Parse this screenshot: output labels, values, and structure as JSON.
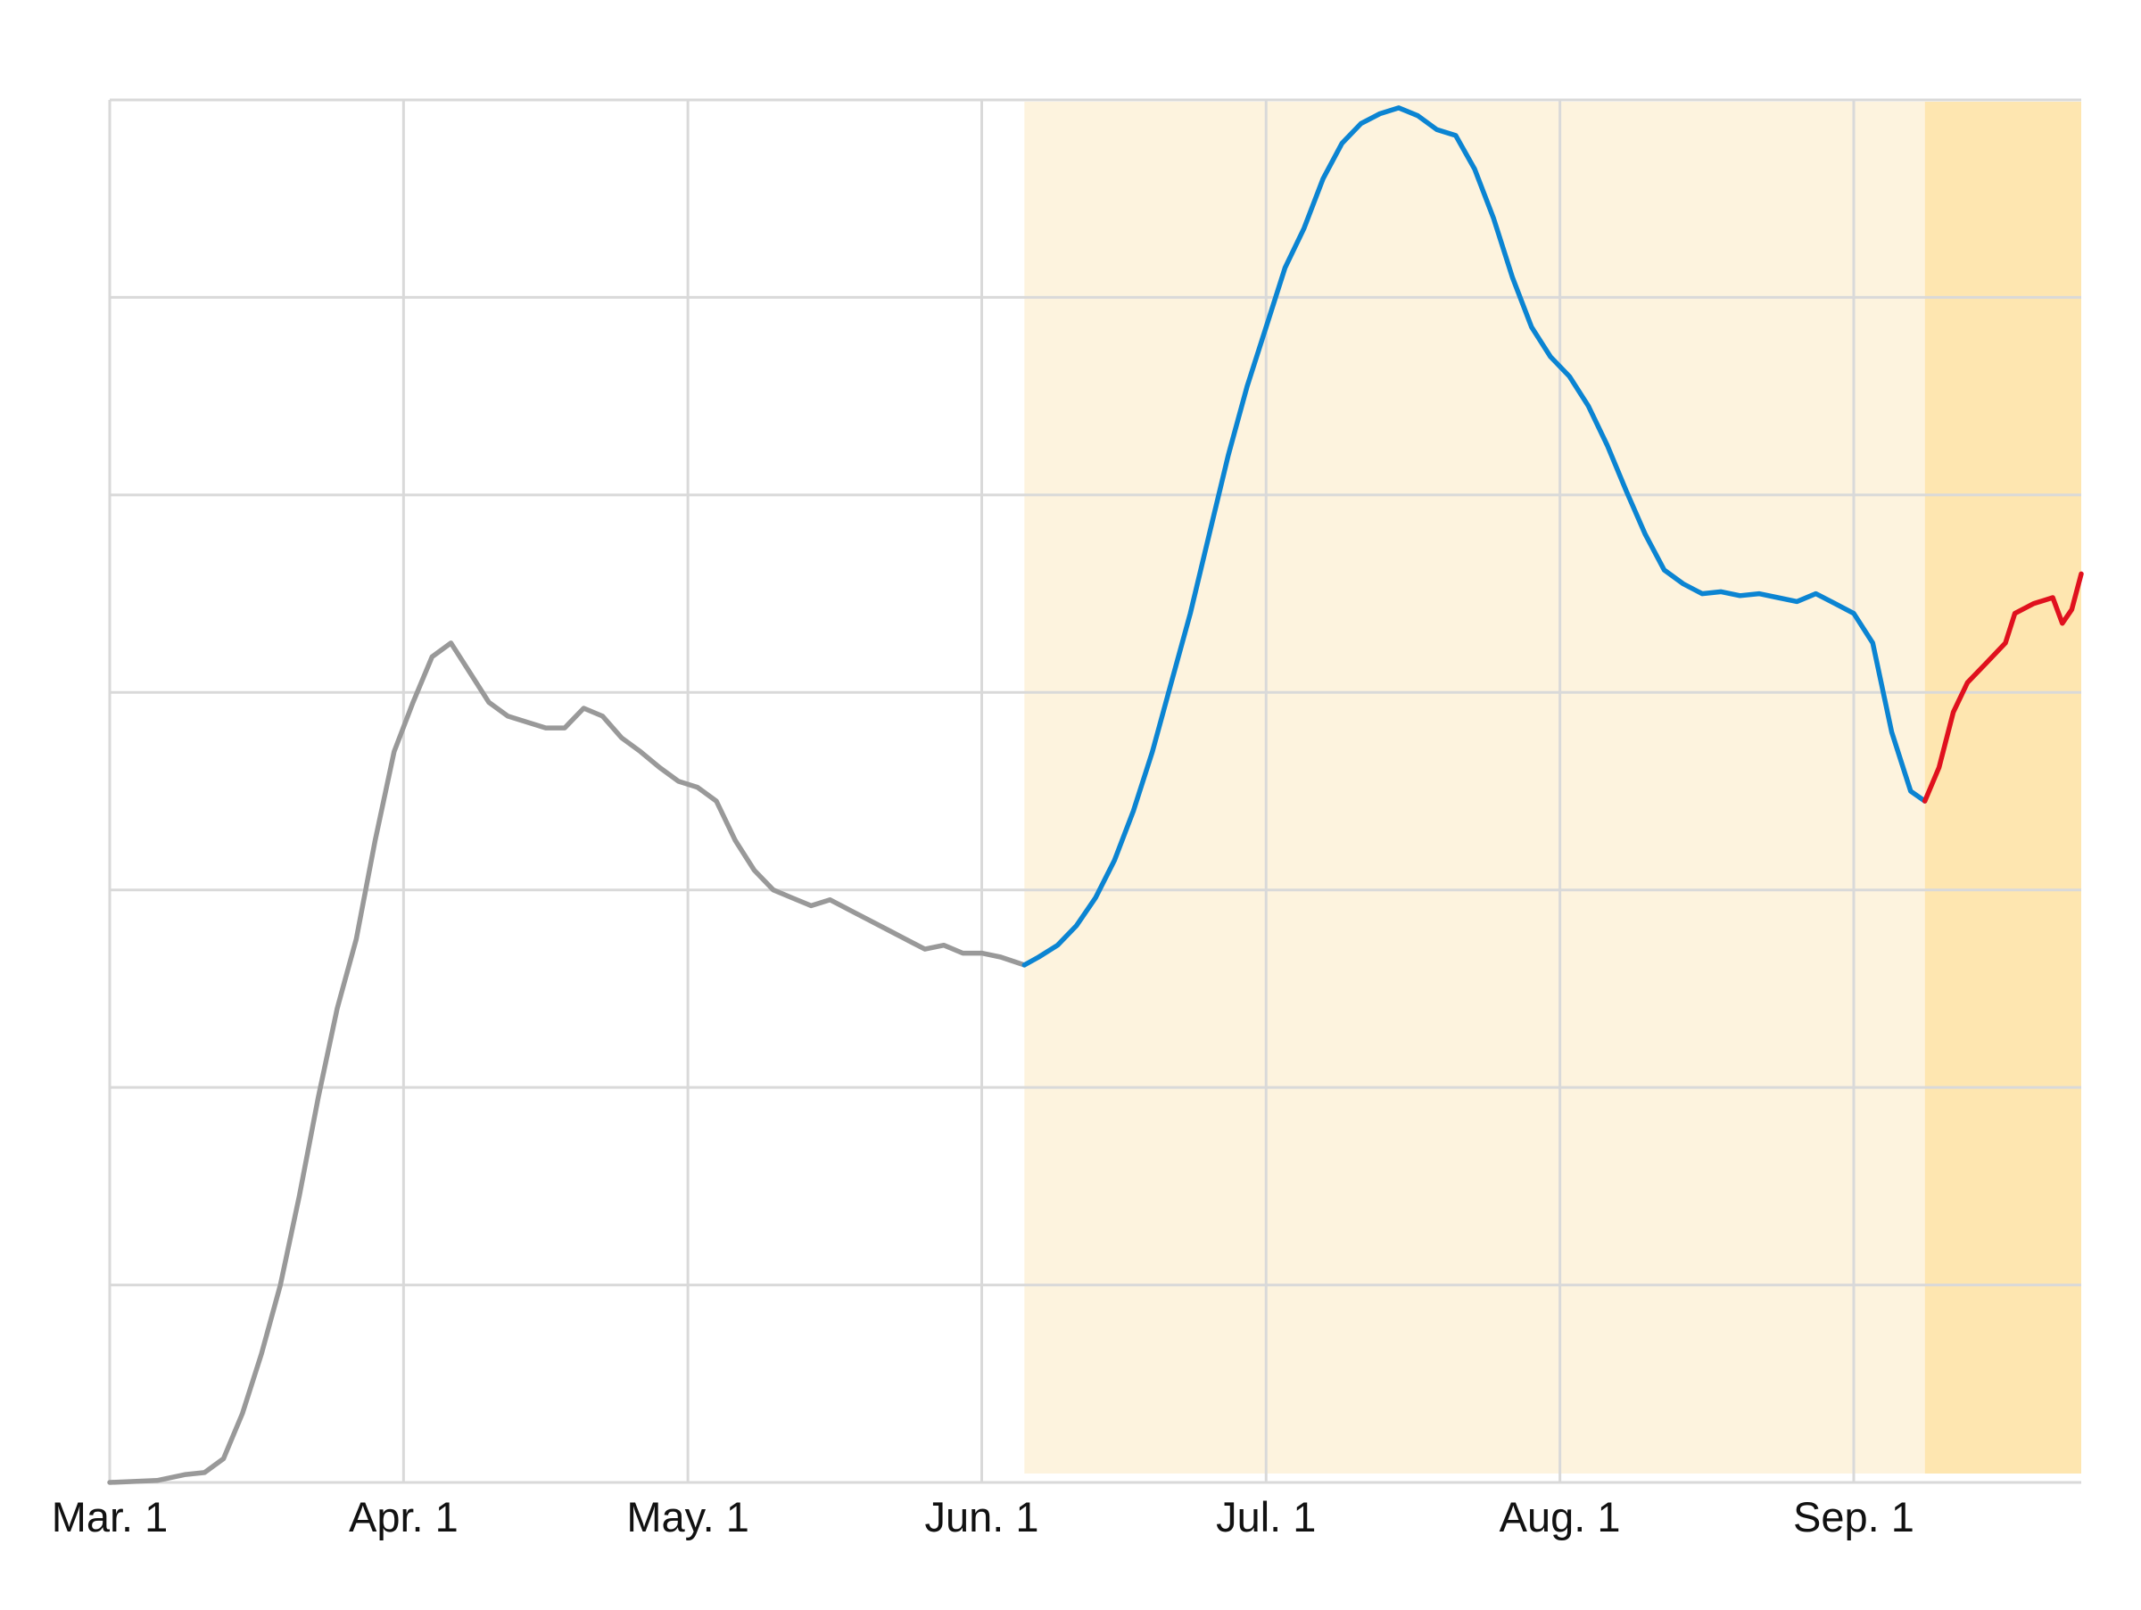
{
  "chart_data": {
    "type": "line",
    "title": "",
    "xlabel": "",
    "ylabel": "",
    "x_tick_labels": [
      {
        "label": "Mar. 1",
        "day": 0
      },
      {
        "label": "Apr. 1",
        "day": 31
      },
      {
        "label": "May. 1",
        "day": 61
      },
      {
        "label": "Jun. 1",
        "day": 92
      },
      {
        "label": "Jul. 1",
        "day": 122
      },
      {
        "label": "Aug. 1",
        "day": 153
      },
      {
        "label": "Sep. 1",
        "day": 184
      }
    ],
    "xlim": [
      0,
      208
    ],
    "ylim": [
      0,
      7
    ],
    "y_grid": [
      1,
      2,
      3,
      4,
      5,
      6,
      7
    ],
    "y_tick_labels": [],
    "grid": true,
    "shaded_regions": [
      {
        "from": 96.5,
        "to": 191.5,
        "color": "#fdf3de"
      },
      {
        "from": 191.5,
        "to": 208,
        "color": "#fee6b0"
      }
    ],
    "series": [
      {
        "color": "#999999",
        "points": [
          [
            0,
            0.0
          ],
          [
            5,
            0.01
          ],
          [
            8,
            0.04
          ],
          [
            10,
            0.05
          ],
          [
            12,
            0.12
          ],
          [
            14,
            0.35
          ],
          [
            16,
            0.65
          ],
          [
            18,
            1.0
          ],
          [
            20,
            1.45
          ],
          [
            22,
            1.95
          ],
          [
            24,
            2.4
          ],
          [
            26,
            2.75
          ],
          [
            28,
            3.25
          ],
          [
            30,
            3.7
          ],
          [
            32,
            3.95
          ],
          [
            34,
            4.18
          ],
          [
            36,
            4.25
          ],
          [
            38,
            4.1
          ],
          [
            40,
            3.95
          ],
          [
            42,
            3.88
          ],
          [
            44,
            3.85
          ],
          [
            46,
            3.82
          ],
          [
            48,
            3.82
          ],
          [
            50,
            3.92
          ],
          [
            52,
            3.88
          ],
          [
            54,
            3.77
          ],
          [
            56,
            3.7
          ],
          [
            58,
            3.62
          ],
          [
            60,
            3.55
          ],
          [
            62,
            3.52
          ],
          [
            64,
            3.45
          ],
          [
            66,
            3.25
          ],
          [
            68,
            3.1
          ],
          [
            70,
            3.0
          ],
          [
            72,
            2.96
          ],
          [
            74,
            2.92
          ],
          [
            76,
            2.95
          ],
          [
            78,
            2.9
          ],
          [
            80,
            2.85
          ],
          [
            82,
            2.8
          ],
          [
            84,
            2.75
          ],
          [
            86,
            2.7
          ],
          [
            88,
            2.72
          ],
          [
            90,
            2.68
          ],
          [
            92,
            2.68
          ],
          [
            94,
            2.66
          ],
          [
            96.5,
            2.62
          ]
        ]
      },
      {
        "color": "#0b84d2",
        "points": [
          [
            96.5,
            2.62
          ],
          [
            98,
            2.66
          ],
          [
            100,
            2.72
          ],
          [
            102,
            2.82
          ],
          [
            104,
            2.96
          ],
          [
            106,
            3.15
          ],
          [
            108,
            3.4
          ],
          [
            110,
            3.7
          ],
          [
            112,
            4.05
          ],
          [
            114,
            4.4
          ],
          [
            116,
            4.8
          ],
          [
            118,
            5.2
          ],
          [
            120,
            5.55
          ],
          [
            122,
            5.85
          ],
          [
            124,
            6.15
          ],
          [
            126,
            6.35
          ],
          [
            128,
            6.6
          ],
          [
            130,
            6.78
          ],
          [
            132,
            6.88
          ],
          [
            134,
            6.93
          ],
          [
            136,
            6.96
          ],
          [
            138,
            6.92
          ],
          [
            140,
            6.85
          ],
          [
            142,
            6.82
          ],
          [
            144,
            6.65
          ],
          [
            146,
            6.4
          ],
          [
            148,
            6.1
          ],
          [
            150,
            5.85
          ],
          [
            152,
            5.7
          ],
          [
            154,
            5.6
          ],
          [
            156,
            5.45
          ],
          [
            158,
            5.25
          ],
          [
            160,
            5.02
          ],
          [
            162,
            4.8
          ],
          [
            164,
            4.62
          ],
          [
            166,
            4.55
          ],
          [
            168,
            4.5
          ],
          [
            170,
            4.51
          ],
          [
            172,
            4.49
          ],
          [
            174,
            4.5
          ],
          [
            176,
            4.48
          ],
          [
            178,
            4.46
          ],
          [
            180,
            4.5
          ],
          [
            182,
            4.45
          ],
          [
            184,
            4.4
          ],
          [
            186,
            4.25
          ],
          [
            188,
            3.8
          ],
          [
            190,
            3.5
          ],
          [
            191.5,
            3.45
          ]
        ]
      },
      {
        "color": "#e0111e",
        "points": [
          [
            191.5,
            3.45
          ],
          [
            193,
            3.62
          ],
          [
            194.5,
            3.9
          ],
          [
            196,
            4.05
          ],
          [
            198,
            4.15
          ],
          [
            200,
            4.25
          ],
          [
            201,
            4.4
          ],
          [
            203,
            4.45
          ],
          [
            205,
            4.48
          ],
          [
            206,
            4.35
          ],
          [
            207,
            4.42
          ],
          [
            208,
            4.6
          ]
        ]
      }
    ]
  }
}
